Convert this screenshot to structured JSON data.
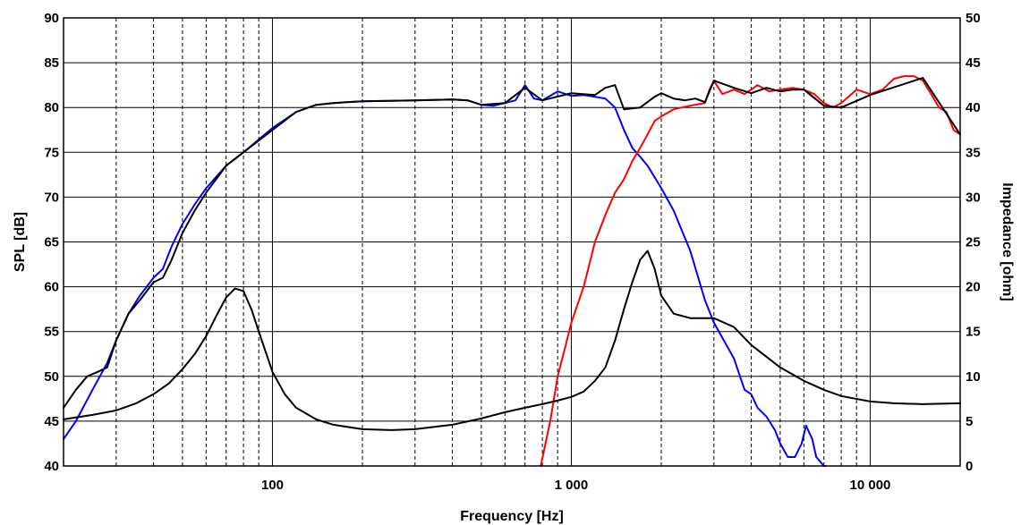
{
  "chart_data": {
    "type": "line",
    "xlabel": "Frequency [Hz]",
    "ylabel": "SPL [dB]",
    "y2label": "Impedance [ohm]",
    "xscale": "log",
    "xlim": [
      20,
      20000
    ],
    "ylim": [
      40,
      90
    ],
    "y2lim": [
      0,
      50
    ],
    "grid": true,
    "x_tick_labels": [
      {
        "value": 100,
        "label": "100"
      },
      {
        "value": 1000,
        "label": "1 000"
      },
      {
        "value": 10000,
        "label": "10 000"
      }
    ],
    "y_ticks": [
      40,
      45,
      50,
      55,
      60,
      65,
      70,
      75,
      80,
      85,
      90
    ],
    "y2_ticks": [
      0,
      5,
      10,
      15,
      20,
      25,
      30,
      35,
      40,
      45,
      50
    ],
    "series": [
      {
        "color": "#0000ff",
        "axis": "left",
        "x": [
          20,
          22,
          25,
          28,
          30,
          33,
          36,
          40,
          43,
          46,
          50,
          55,
          60,
          70,
          80,
          100,
          120,
          140,
          160,
          200,
          300,
          400,
          450,
          500,
          550,
          600,
          650,
          700,
          750,
          800,
          900,
          1000,
          1100,
          1200,
          1300,
          1400,
          1500,
          1600,
          1700,
          1800,
          2000,
          2200,
          2500,
          2800,
          3000,
          3500,
          3800,
          4000,
          4200,
          4500,
          4800,
          5000,
          5300,
          5600,
          5900,
          6100,
          6400,
          6600,
          6800,
          7000,
          7100
        ],
        "values": [
          43,
          45,
          48.5,
          51.5,
          54,
          57,
          59,
          61,
          62,
          64.5,
          67,
          69.2,
          71,
          73.5,
          75,
          77.7,
          79.5,
          80.3,
          80.5,
          80.7,
          80.8,
          80.9,
          80.8,
          80.3,
          80.2,
          80.5,
          80.8,
          82.5,
          81,
          80.8,
          81.8,
          81.3,
          81.4,
          81.2,
          81,
          80,
          77.5,
          75.5,
          74.5,
          73.5,
          71,
          68.5,
          64,
          58.5,
          56,
          52,
          48.5,
          48,
          46.5,
          45.5,
          44,
          42.5,
          41,
          41,
          42.5,
          44.5,
          43,
          41,
          40.5,
          40,
          40
        ]
      },
      {
        "color": "#ff0000",
        "axis": "left",
        "x": [
          790,
          850,
          900,
          950,
          1000,
          1100,
          1200,
          1300,
          1400,
          1500,
          1600,
          1700,
          1800,
          1900,
          2000,
          2200,
          2500,
          2800,
          2900,
          3000,
          3200,
          3500,
          3800,
          4200,
          4600,
          5000,
          5500,
          6000,
          6500,
          7000,
          7500,
          8000,
          9000,
          10000,
          11000,
          12000,
          13000,
          14000,
          15000,
          16000,
          17000,
          18000,
          19000,
          20000
        ],
        "values": [
          40,
          45,
          50,
          53,
          56,
          60,
          65,
          68,
          70.5,
          72,
          74,
          75.5,
          77,
          78.5,
          79,
          79.8,
          80.2,
          80.5,
          82,
          83,
          81.5,
          82,
          81.5,
          82.5,
          81.8,
          82,
          82.2,
          82,
          81.5,
          80.5,
          80,
          80.5,
          82,
          81.5,
          82,
          83.2,
          83.5,
          83.5,
          83,
          81.5,
          80,
          79.5,
          77.5,
          77
        ]
      },
      {
        "color": "#000000",
        "axis": "left",
        "x": [
          20,
          22,
          24,
          26,
          28,
          30,
          33,
          36,
          40,
          43,
          46,
          50,
          55,
          60,
          70,
          80,
          100,
          120,
          140,
          160,
          200,
          300,
          400,
          450,
          500,
          600,
          700,
          800,
          1000,
          1200,
          1300,
          1400,
          1500,
          1700,
          1900,
          2000,
          2200,
          2400,
          2600,
          2800,
          3000,
          3500,
          4000,
          4500,
          5000,
          5500,
          6000,
          7000,
          8000,
          10000,
          15000,
          20000
        ],
        "values": [
          46.5,
          48.5,
          50,
          50.5,
          51,
          54,
          57,
          58.5,
          60.5,
          61,
          63,
          66,
          68.5,
          70.5,
          73.5,
          75,
          77.5,
          79.5,
          80.3,
          80.5,
          80.7,
          80.8,
          80.9,
          80.8,
          80.3,
          80.5,
          82.2,
          80.8,
          81.6,
          81.4,
          82.2,
          82.5,
          79.8,
          80,
          81.2,
          81.6,
          81,
          80.8,
          81,
          80.6,
          83,
          82.2,
          81.6,
          82.2,
          81.8,
          82,
          82,
          80.2,
          80,
          81.4,
          83.3,
          77
        ]
      },
      {
        "color": "#000000",
        "axis": "right",
        "x": [
          20,
          25,
          30,
          35,
          40,
          45,
          50,
          55,
          60,
          65,
          70,
          75,
          80,
          85,
          90,
          100,
          110,
          120,
          140,
          160,
          200,
          250,
          300,
          400,
          500,
          600,
          700,
          800,
          900,
          1000,
          1100,
          1200,
          1300,
          1400,
          1500,
          1600,
          1700,
          1800,
          1900,
          2000,
          2200,
          2500,
          2800,
          3000,
          3500,
          4000,
          5000,
          6000,
          7000,
          8000,
          10000,
          12000,
          15000,
          20000
        ],
        "values": [
          5.2,
          5.7,
          6.2,
          7,
          8,
          9.2,
          10.8,
          12.5,
          14.5,
          16.8,
          18.8,
          19.8,
          19.5,
          17.5,
          15,
          10.5,
          8,
          6.5,
          5.2,
          4.6,
          4.1,
          4,
          4.1,
          4.6,
          5.3,
          6,
          6.5,
          6.9,
          7.3,
          7.7,
          8.3,
          9.5,
          11,
          14,
          17.5,
          20.5,
          23,
          24,
          22,
          19,
          17,
          16.5,
          16.5,
          16.5,
          15.5,
          13.5,
          11,
          9.5,
          8.5,
          7.8,
          7.2,
          7,
          6.9,
          7
        ]
      }
    ]
  }
}
